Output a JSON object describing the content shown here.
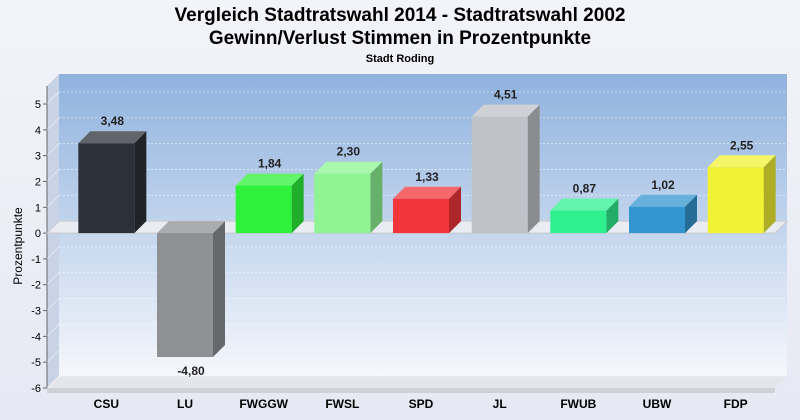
{
  "chart_data": {
    "type": "bar",
    "title": "Vergleich Stadtratswahl 2014 - Stadtratswahl 2002",
    "subtitle": "Gewinn/Verlust Stimmen in Prozentpunkte",
    "caption": "Stadt Roding",
    "ylabel": "Prozentpunkte",
    "ylim": [
      -6,
      5
    ],
    "yticks": [
      5,
      4,
      3,
      2,
      1,
      0,
      -1,
      -2,
      -3,
      -4,
      -5,
      -6
    ],
    "grid": true,
    "categories": [
      "CSU",
      "LU",
      "FWGGW",
      "FWSL",
      "SPD",
      "JL",
      "FWUB",
      "UBW",
      "FDP"
    ],
    "values": [
      3.48,
      -4.8,
      1.84,
      2.3,
      1.33,
      4.51,
      0.87,
      1.02,
      2.55
    ],
    "value_labels": [
      "3,48",
      "-4,80",
      "1,84",
      "2,30",
      "1,33",
      "4,51",
      "0,87",
      "1,02",
      "2,55"
    ],
    "colors": [
      "#2c3038",
      "#8e9094",
      "#2ef23a",
      "#8ef592",
      "#f2353a",
      "#bfc2c8",
      "#2ef08e",
      "#3396d0",
      "#f2f235"
    ]
  }
}
